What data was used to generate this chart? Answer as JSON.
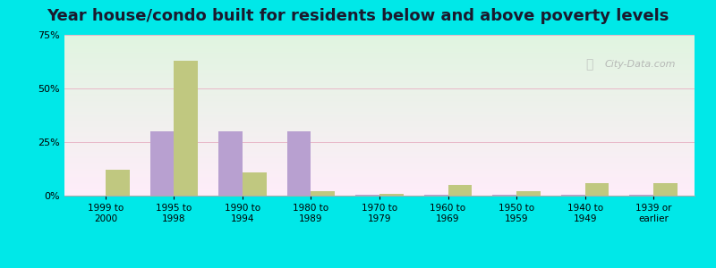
{
  "title": "Year house/condo built for residents below and above poverty levels",
  "categories": [
    "1999 to\n2000",
    "1995 to\n1998",
    "1990 to\n1994",
    "1980 to\n1989",
    "1970 to\n1979",
    "1960 to\n1969",
    "1950 to\n1959",
    "1940 to\n1949",
    "1939 or\nearlier"
  ],
  "below_poverty": [
    0,
    30,
    30,
    30,
    0.5,
    0.5,
    0.5,
    0.5,
    0.5
  ],
  "above_poverty": [
    12,
    63,
    11,
    2,
    1,
    5,
    2,
    6,
    6
  ],
  "below_color": "#b8a0d0",
  "above_color": "#c0c880",
  "ylim": [
    0,
    75
  ],
  "yticks": [
    0,
    25,
    50,
    75
  ],
  "ytick_labels": [
    "0%",
    "25%",
    "50%",
    "75%"
  ],
  "outer_bg": "#00e8e8",
  "title_fontsize": 13,
  "bar_width": 0.35,
  "grid_color": "#e8a0b0",
  "watermark": "City-Data.com"
}
